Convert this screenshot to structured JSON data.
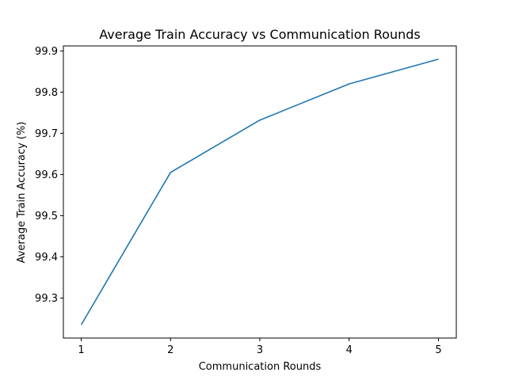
{
  "chart_data": {
    "type": "line",
    "title": "Average Train Accuracy vs Communication Rounds",
    "xlabel": "Communication Rounds",
    "ylabel": "Average Train Accuracy (%)",
    "x": [
      1,
      2,
      3,
      4,
      5
    ],
    "series": [
      {
        "values": [
          99.235,
          99.605,
          99.732,
          99.82,
          99.88
        ],
        "color": "#1f77b4"
      }
    ],
    "xlim": [
      0.8,
      5.2
    ],
    "ylim": [
      99.2028,
      99.9122
    ],
    "xticks": [
      "1",
      "2",
      "3",
      "4",
      "5"
    ],
    "yticks": [
      "99.3",
      "99.4",
      "99.5",
      "99.6",
      "99.7",
      "99.8",
      "99.9"
    ],
    "grid": false,
    "legend": "none"
  }
}
